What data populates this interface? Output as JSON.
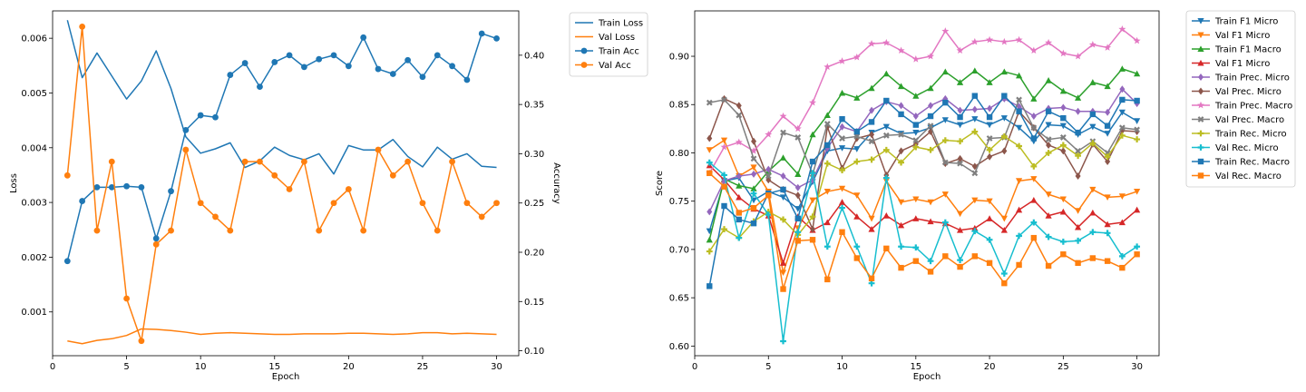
{
  "chart_data": [
    {
      "type": "line",
      "title": "",
      "xlabel": "Epoch",
      "ylabel": "Loss",
      "y2label": "Accuracy",
      "xlim": [
        0,
        31.5
      ],
      "ylim": [
        0.0002,
        0.0065
      ],
      "y2lim": [
        0.095,
        0.445
      ],
      "xticks": [
        0,
        5,
        10,
        15,
        20,
        25,
        30
      ],
      "yticks": [
        0.001,
        0.002,
        0.003,
        0.004,
        0.005,
        0.006
      ],
      "ytick_labels": [
        "0.001",
        "0.002",
        "0.003",
        "0.004",
        "0.005",
        "0.006"
      ],
      "y2ticks": [
        0.1,
        0.15,
        0.2,
        0.25,
        0.3,
        0.35,
        0.4
      ],
      "y2tick_labels": [
        "0.10",
        "0.15",
        "0.20",
        "0.25",
        "0.30",
        "0.35",
        "0.40"
      ],
      "legend_position": "outside-right-top",
      "x": [
        1,
        2,
        3,
        4,
        5,
        6,
        7,
        8,
        9,
        10,
        11,
        12,
        13,
        14,
        15,
        16,
        17,
        18,
        19,
        20,
        21,
        22,
        23,
        24,
        25,
        26,
        27,
        28,
        29,
        30
      ],
      "series": [
        {
          "name": "Train Loss",
          "axis": "left",
          "color": "#1f77b4",
          "marker": "none",
          "values": [
            0.00633,
            0.00528,
            0.00573,
            0.00531,
            0.00489,
            0.00522,
            0.00577,
            0.00508,
            0.0042,
            0.0039,
            0.00398,
            0.00409,
            0.00364,
            0.00376,
            0.00401,
            0.00386,
            0.00378,
            0.00389,
            0.00352,
            0.00404,
            0.00396,
            0.00396,
            0.00415,
            0.00384,
            0.00365,
            0.00401,
            0.00379,
            0.00389,
            0.00366,
            0.00364
          ]
        },
        {
          "name": "Val Loss",
          "axis": "left",
          "color": "#ff7f0e",
          "marker": "none",
          "values": [
            0.00047,
            0.00042,
            0.00048,
            0.00051,
            0.00057,
            0.00069,
            0.00068,
            0.00066,
            0.00063,
            0.00059,
            0.00061,
            0.00062,
            0.00061,
            0.0006,
            0.00059,
            0.00059,
            0.0006,
            0.0006,
            0.0006,
            0.00061,
            0.00061,
            0.0006,
            0.00059,
            0.0006,
            0.00062,
            0.00062,
            0.0006,
            0.00061,
            0.0006,
            0.00059
          ]
        },
        {
          "name": "Train Acc",
          "axis": "right",
          "color": "#1f77b4",
          "marker": "circle",
          "values": [
            0.191,
            0.252,
            0.266,
            0.266,
            0.267,
            0.266,
            0.214,
            0.262,
            0.324,
            0.339,
            0.337,
            0.38,
            0.392,
            0.368,
            0.393,
            0.4,
            0.388,
            0.396,
            0.4,
            0.389,
            0.418,
            0.386,
            0.381,
            0.395,
            0.378,
            0.4,
            0.389,
            0.375,
            0.422,
            0.417
          ]
        },
        {
          "name": "Val Acc",
          "axis": "right",
          "color": "#ff7f0e",
          "marker": "circle",
          "values": [
            0.278,
            0.429,
            0.222,
            0.292,
            0.153,
            0.11,
            0.208,
            0.222,
            0.304,
            0.25,
            0.236,
            0.222,
            0.292,
            0.292,
            0.278,
            0.264,
            0.292,
            0.222,
            0.25,
            0.264,
            0.222,
            0.304,
            0.278,
            0.292,
            0.25,
            0.222,
            0.292,
            0.25,
            0.236,
            0.25
          ]
        }
      ]
    },
    {
      "type": "line",
      "title": "",
      "xlabel": "Epoch",
      "ylabel": "Score",
      "xlim": [
        0,
        31.5
      ],
      "ylim": [
        0.59,
        0.947
      ],
      "xticks": [
        0,
        5,
        10,
        15,
        20,
        25,
        30
      ],
      "yticks": [
        0.6,
        0.65,
        0.7,
        0.75,
        0.8,
        0.85,
        0.9
      ],
      "ytick_labels": [
        "0.60",
        "0.65",
        "0.70",
        "0.75",
        "0.80",
        "0.85",
        "0.90"
      ],
      "legend_position": "outside-right-top",
      "x": [
        1,
        2,
        3,
        4,
        5,
        6,
        7,
        8,
        9,
        10,
        11,
        12,
        13,
        14,
        15,
        16,
        17,
        18,
        19,
        20,
        21,
        22,
        23,
        24,
        25,
        26,
        27,
        28,
        29,
        30
      ],
      "series": [
        {
          "name": "Train F1 Micro",
          "color": "#1f77b4",
          "marker": "triangle_down",
          "values": [
            0.719,
            0.771,
            0.774,
            0.751,
            0.76,
            0.754,
            0.742,
            0.77,
            0.802,
            0.805,
            0.804,
            0.821,
            0.827,
            0.82,
            0.821,
            0.826,
            0.834,
            0.829,
            0.835,
            0.829,
            0.836,
            0.826,
            0.812,
            0.829,
            0.828,
            0.819,
            0.827,
            0.82,
            0.842,
            0.833
          ]
        },
        {
          "name": "Val F1 Micro",
          "color": "#ff7f0e",
          "marker": "triangle_down",
          "values": [
            0.803,
            0.813,
            0.776,
            0.785,
            0.76,
            0.676,
            0.722,
            0.751,
            0.76,
            0.763,
            0.756,
            0.732,
            0.771,
            0.749,
            0.752,
            0.749,
            0.757,
            0.737,
            0.751,
            0.75,
            0.732,
            0.771,
            0.773,
            0.757,
            0.752,
            0.74,
            0.762,
            0.754,
            0.755,
            0.76
          ]
        },
        {
          "name": "Train F1 Macro",
          "color": "#2ca02c",
          "marker": "triangle_up",
          "values": [
            0.71,
            0.773,
            0.766,
            0.763,
            0.781,
            0.795,
            0.778,
            0.819,
            0.839,
            0.862,
            0.857,
            0.867,
            0.882,
            0.869,
            0.859,
            0.867,
            0.884,
            0.873,
            0.885,
            0.873,
            0.884,
            0.88,
            0.856,
            0.875,
            0.864,
            0.857,
            0.873,
            0.869,
            0.887,
            0.882
          ]
        },
        {
          "name": "Val F1 Micro",
          "color": "#d62728",
          "marker": "triangle_up",
          "values": [
            0.787,
            0.772,
            0.754,
            0.742,
            0.735,
            0.686,
            0.734,
            0.72,
            0.728,
            0.749,
            0.734,
            0.721,
            0.735,
            0.725,
            0.732,
            0.729,
            0.727,
            0.72,
            0.722,
            0.732,
            0.72,
            0.741,
            0.751,
            0.735,
            0.739,
            0.723,
            0.738,
            0.726,
            0.728,
            0.741
          ]
        },
        {
          "name": "Train Prec. Micro",
          "color": "#9467bd",
          "marker": "diamond",
          "values": [
            0.739,
            0.771,
            0.776,
            0.778,
            0.783,
            0.776,
            0.764,
            0.772,
            0.805,
            0.827,
            0.822,
            0.844,
            0.853,
            0.849,
            0.838,
            0.849,
            0.856,
            0.844,
            0.845,
            0.846,
            0.856,
            0.848,
            0.838,
            0.846,
            0.847,
            0.843,
            0.843,
            0.842,
            0.866,
            0.851
          ]
        },
        {
          "name": "Val Prec. Micro",
          "color": "#8c564b",
          "marker": "diamond",
          "values": [
            0.815,
            0.856,
            0.849,
            0.812,
            0.772,
            0.762,
            0.756,
            0.721,
            0.827,
            0.784,
            0.815,
            0.819,
            0.777,
            0.802,
            0.809,
            0.822,
            0.789,
            0.794,
            0.786,
            0.796,
            0.802,
            0.843,
            0.826,
            0.808,
            0.802,
            0.776,
            0.809,
            0.791,
            0.823,
            0.822
          ]
        },
        {
          "name": "Train Prec. Macro",
          "color": "#e377c2",
          "marker": "star",
          "values": [
            0.779,
            0.806,
            0.811,
            0.802,
            0.819,
            0.838,
            0.825,
            0.852,
            0.889,
            0.895,
            0.899,
            0.913,
            0.914,
            0.906,
            0.897,
            0.9,
            0.926,
            0.906,
            0.915,
            0.917,
            0.915,
            0.917,
            0.906,
            0.914,
            0.903,
            0.9,
            0.912,
            0.909,
            0.928,
            0.916
          ]
        },
        {
          "name": "Val Prec. Macro",
          "color": "#7f7f7f",
          "marker": "x",
          "values": [
            0.852,
            0.855,
            0.839,
            0.794,
            0.776,
            0.821,
            0.816,
            0.778,
            0.83,
            0.815,
            0.817,
            0.812,
            0.818,
            0.819,
            0.813,
            0.828,
            0.79,
            0.789,
            0.779,
            0.815,
            0.816,
            0.855,
            0.826,
            0.814,
            0.816,
            0.802,
            0.812,
            0.8,
            0.826,
            0.824
          ]
        },
        {
          "name": "Train Rec. Micro",
          "color": "#bcbd22",
          "marker": "plus",
          "values": [
            0.698,
            0.721,
            0.712,
            0.729,
            0.739,
            0.731,
            0.715,
            0.734,
            0.789,
            0.782,
            0.791,
            0.793,
            0.803,
            0.79,
            0.806,
            0.803,
            0.813,
            0.812,
            0.822,
            0.803,
            0.817,
            0.807,
            0.786,
            0.8,
            0.808,
            0.797,
            0.81,
            0.796,
            0.818,
            0.814
          ]
        },
        {
          "name": "Val Rec. Micro",
          "color": "#17becf",
          "marker": "plus",
          "values": [
            0.79,
            0.777,
            0.712,
            0.758,
            0.736,
            0.605,
            0.718,
            0.779,
            0.703,
            0.743,
            0.703,
            0.665,
            0.774,
            0.703,
            0.702,
            0.688,
            0.728,
            0.689,
            0.719,
            0.71,
            0.675,
            0.714,
            0.728,
            0.713,
            0.708,
            0.709,
            0.718,
            0.717,
            0.693,
            0.703
          ]
        },
        {
          "name": "Train Rec. Macro",
          "color": "#1f77b4",
          "marker": "square",
          "values": [
            0.662,
            0.745,
            0.731,
            0.727,
            0.758,
            0.762,
            0.732,
            0.791,
            0.808,
            0.835,
            0.822,
            0.832,
            0.854,
            0.84,
            0.829,
            0.838,
            0.852,
            0.837,
            0.859,
            0.837,
            0.859,
            0.843,
            0.815,
            0.843,
            0.836,
            0.821,
            0.84,
            0.828,
            0.855,
            0.854
          ]
        },
        {
          "name": "Val Rec. Macro",
          "color": "#ff7f0e",
          "marker": "square",
          "values": [
            0.779,
            0.765,
            0.738,
            0.743,
            0.756,
            0.659,
            0.709,
            0.71,
            0.669,
            0.718,
            0.691,
            0.67,
            0.701,
            0.681,
            0.688,
            0.677,
            0.693,
            0.682,
            0.693,
            0.686,
            0.665,
            0.684,
            0.712,
            0.683,
            0.695,
            0.686,
            0.691,
            0.688,
            0.681,
            0.695
          ]
        }
      ]
    }
  ]
}
